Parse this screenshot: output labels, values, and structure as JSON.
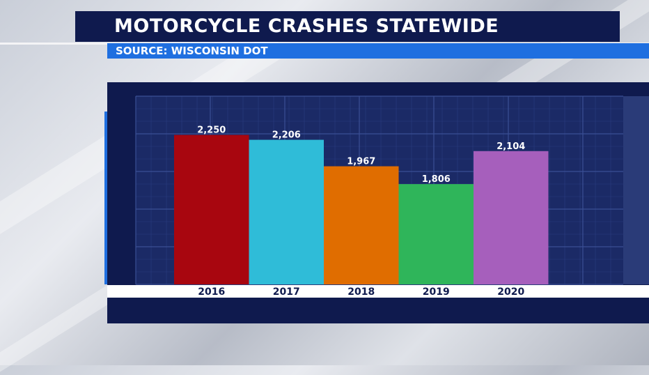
{
  "header": {
    "title": "MOTORCYCLE CRASHES STATEWIDE",
    "source": "SOURCE: WISCONSIN DOT"
  },
  "colors": {
    "panel": "#0f1a4e",
    "title_bar": "#0f1a4e",
    "source_bar": "#1f6fe0",
    "grid_bg": "#1b2a66",
    "grid_line": "#3a4f95"
  },
  "chart_data": {
    "type": "bar",
    "categories": [
      "2016",
      "2017",
      "2018",
      "2019",
      "2020"
    ],
    "values": [
      2250,
      2206,
      1967,
      1806,
      2104
    ],
    "value_labels": [
      "2,250",
      "2,206",
      "1,967",
      "1,806",
      "2,104"
    ],
    "bar_colors": [
      "#a8060f",
      "#2fbcd8",
      "#e06d00",
      "#2fb55a",
      "#a65fbc"
    ],
    "ylim": [
      900,
      2600
    ],
    "grid": true,
    "legend": "none"
  }
}
